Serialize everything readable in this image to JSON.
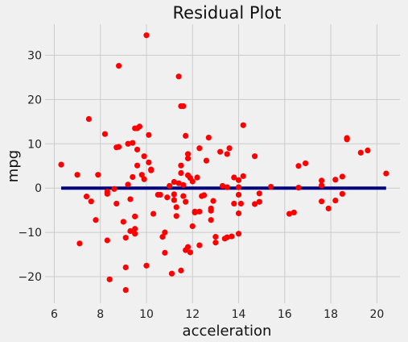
{
  "chart_data": {
    "type": "scatter",
    "title": "Residual Plot",
    "xlabel": "acceleration",
    "ylabel": "mpg",
    "xlim": [
      5.6,
      21.0
    ],
    "ylim": [
      -26,
      37
    ],
    "xticks": [
      6,
      8,
      10,
      12,
      14,
      16,
      18,
      20
    ],
    "yticks": [
      -20,
      -10,
      0,
      10,
      20,
      30
    ],
    "grid": true,
    "zero_line": {
      "x": [
        6.3,
        20.4
      ],
      "y": 0,
      "color": "#000080"
    },
    "point_color": "#ff0000",
    "points": [
      [
        6.3,
        5.3
      ],
      [
        7.0,
        3.0
      ],
      [
        7.1,
        -12.5
      ],
      [
        7.4,
        -1.9
      ],
      [
        7.5,
        15.6
      ],
      [
        7.6,
        -3.0
      ],
      [
        7.8,
        -7.2
      ],
      [
        7.9,
        3.0
      ],
      [
        8.2,
        12.2
      ],
      [
        8.3,
        -0.8
      ],
      [
        8.3,
        -1.3
      ],
      [
        8.3,
        -11.8
      ],
      [
        8.4,
        -20.6
      ],
      [
        8.6,
        -0.2
      ],
      [
        8.7,
        9.2
      ],
      [
        8.7,
        -3.5
      ],
      [
        8.8,
        27.6
      ],
      [
        8.8,
        9.3
      ],
      [
        9.0,
        -7.6
      ],
      [
        9.1,
        -11.2
      ],
      [
        9.1,
        -17.9
      ],
      [
        9.1,
        -23.0
      ],
      [
        9.2,
        10.0
      ],
      [
        9.2,
        0.8
      ],
      [
        9.3,
        -2.5
      ],
      [
        9.3,
        -9.7
      ],
      [
        9.4,
        10.2
      ],
      [
        9.4,
        2.5
      ],
      [
        9.5,
        13.5
      ],
      [
        9.5,
        -6.4
      ],
      [
        9.5,
        -9.2
      ],
      [
        9.5,
        -10.3
      ],
      [
        9.6,
        8.7
      ],
      [
        9.6,
        5.1
      ],
      [
        9.6,
        13.5
      ],
      [
        9.7,
        13.9
      ],
      [
        9.8,
        3.0
      ],
      [
        9.9,
        7.2
      ],
      [
        9.9,
        2.0
      ],
      [
        10.0,
        34.5
      ],
      [
        10.0,
        -17.5
      ],
      [
        10.1,
        12.0
      ],
      [
        10.1,
        5.8
      ],
      [
        10.2,
        4.0
      ],
      [
        10.2,
        4.2
      ],
      [
        10.3,
        -5.8
      ],
      [
        10.5,
        -1.5
      ],
      [
        10.6,
        -1.5
      ],
      [
        10.7,
        -11.0
      ],
      [
        10.8,
        -10.0
      ],
      [
        10.8,
        -14.6
      ],
      [
        10.9,
        -2.1
      ],
      [
        11.0,
        0.5
      ],
      [
        11.1,
        -19.3
      ],
      [
        11.2,
        1.4
      ],
      [
        11.2,
        -1.4
      ],
      [
        11.2,
        -2.7
      ],
      [
        11.3,
        -4.3
      ],
      [
        11.3,
        -6.3
      ],
      [
        11.4,
        25.2
      ],
      [
        11.4,
        1.1
      ],
      [
        11.5,
        5.1
      ],
      [
        11.5,
        3.4
      ],
      [
        11.5,
        18.5
      ],
      [
        11.5,
        -18.6
      ],
      [
        11.6,
        18.5
      ],
      [
        11.6,
        0.7
      ],
      [
        11.6,
        -1.8
      ],
      [
        11.7,
        -14.0
      ],
      [
        11.7,
        -3.1
      ],
      [
        11.7,
        11.8
      ],
      [
        11.8,
        7.7
      ],
      [
        11.8,
        6.7
      ],
      [
        11.8,
        2.9
      ],
      [
        11.8,
        -13.3
      ],
      [
        11.9,
        2.3
      ],
      [
        11.9,
        -14.5
      ],
      [
        12.0,
        1.5
      ],
      [
        12.0,
        -8.6
      ],
      [
        12.1,
        -5.3
      ],
      [
        12.1,
        -5.5
      ],
      [
        12.2,
        2.4
      ],
      [
        12.3,
        -12.9
      ],
      [
        12.3,
        -5.3
      ],
      [
        12.3,
        9.0
      ],
      [
        12.4,
        -1.8
      ],
      [
        12.5,
        -1.6
      ],
      [
        12.6,
        6.2
      ],
      [
        12.7,
        11.4
      ],
      [
        12.8,
        -4.6
      ],
      [
        12.8,
        -5.1
      ],
      [
        12.8,
        -7.2
      ],
      [
        12.9,
        -2.9
      ],
      [
        13.0,
        -11.0
      ],
      [
        13.0,
        -12.3
      ],
      [
        13.2,
        8.2
      ],
      [
        13.3,
        0.5
      ],
      [
        13.4,
        -11.4
      ],
      [
        13.5,
        7.7
      ],
      [
        13.5,
        0.2
      ],
      [
        13.5,
        -11.1
      ],
      [
        13.6,
        9.0
      ],
      [
        13.7,
        -10.9
      ],
      [
        13.8,
        2.4
      ],
      [
        13.8,
        -3.5
      ],
      [
        14.0,
        1.8
      ],
      [
        14.0,
        0.2
      ],
      [
        14.0,
        -1.5
      ],
      [
        14.0,
        -5.7
      ],
      [
        14.0,
        -10.3
      ],
      [
        14.1,
        -3.5
      ],
      [
        14.2,
        14.2
      ],
      [
        14.2,
        2.7
      ],
      [
        14.7,
        7.2
      ],
      [
        14.7,
        -3.6
      ],
      [
        14.9,
        -1.2
      ],
      [
        14.9,
        -3.1
      ],
      [
        15.4,
        0.3
      ],
      [
        16.2,
        -5.8
      ],
      [
        16.4,
        -5.5
      ],
      [
        16.6,
        0.1
      ],
      [
        16.6,
        5.0
      ],
      [
        16.9,
        5.6
      ],
      [
        17.6,
        1.7
      ],
      [
        17.6,
        0.6
      ],
      [
        17.6,
        -3.0
      ],
      [
        17.9,
        -4.6
      ],
      [
        18.2,
        1.9
      ],
      [
        18.2,
        -2.8
      ],
      [
        18.5,
        2.6
      ],
      [
        18.5,
        -1.3
      ],
      [
        18.7,
        11.0
      ],
      [
        18.7,
        11.3
      ],
      [
        19.3,
        8.0
      ],
      [
        19.6,
        8.5
      ],
      [
        20.4,
        3.3
      ]
    ]
  }
}
